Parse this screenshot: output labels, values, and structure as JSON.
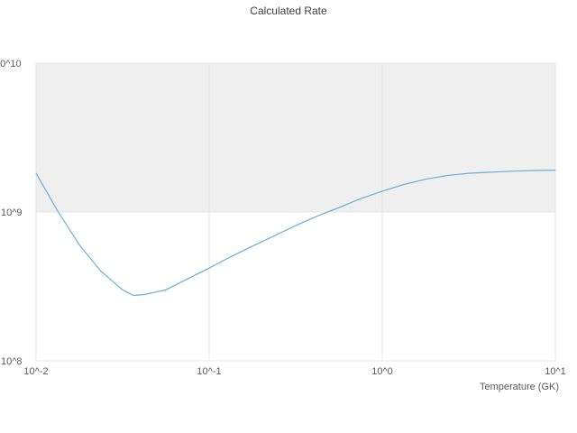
{
  "chart": {
    "title": "Calculated Rate",
    "x_axis_label": "Temperature (GK)",
    "x_tick_labels": [
      "10^-2",
      "10^-1",
      "10^0",
      "10^1"
    ],
    "y_tick_labels": [
      "10^10",
      "10^9",
      "10^8"
    ]
  },
  "chart_data": {
    "type": "line",
    "title": "Calculated Rate",
    "xlabel": "Temperature (GK)",
    "ylabel": "",
    "x_scale": "log",
    "y_scale": "log",
    "xlim": [
      0.01,
      10
    ],
    "ylim": [
      100000000.0,
      10000000000.0
    ],
    "grid": true,
    "legend": false,
    "line_color": "#6baed6",
    "shaded_band": {
      "y_min": 1000000000.0,
      "y_max": 10000000000.0,
      "color": "#efefef"
    },
    "x": [
      0.01,
      0.0133,
      0.0178,
      0.0237,
      0.0316,
      0.0365,
      0.0422,
      0.0562,
      0.075,
      0.1,
      0.133,
      0.178,
      0.237,
      0.316,
      0.422,
      0.562,
      0.75,
      1.0,
      1.33,
      1.78,
      2.37,
      3.16,
      4.22,
      5.62,
      7.5,
      10.0
    ],
    "y": [
      1820000000.0,
      1020000000.0,
      600000000.0,
      400000000.0,
      300000000.0,
      275000000.0,
      279000000.0,
      300000000.0,
      355000000.0,
      420000000.0,
      500000000.0,
      590000000.0,
      690000000.0,
      810000000.0,
      940000000.0,
      1070000000.0,
      1230000000.0,
      1380000000.0,
      1530000000.0,
      1660000000.0,
      1760000000.0,
      1820000000.0,
      1850000000.0,
      1880000000.0,
      1900000000.0,
      1910000000.0
    ]
  }
}
